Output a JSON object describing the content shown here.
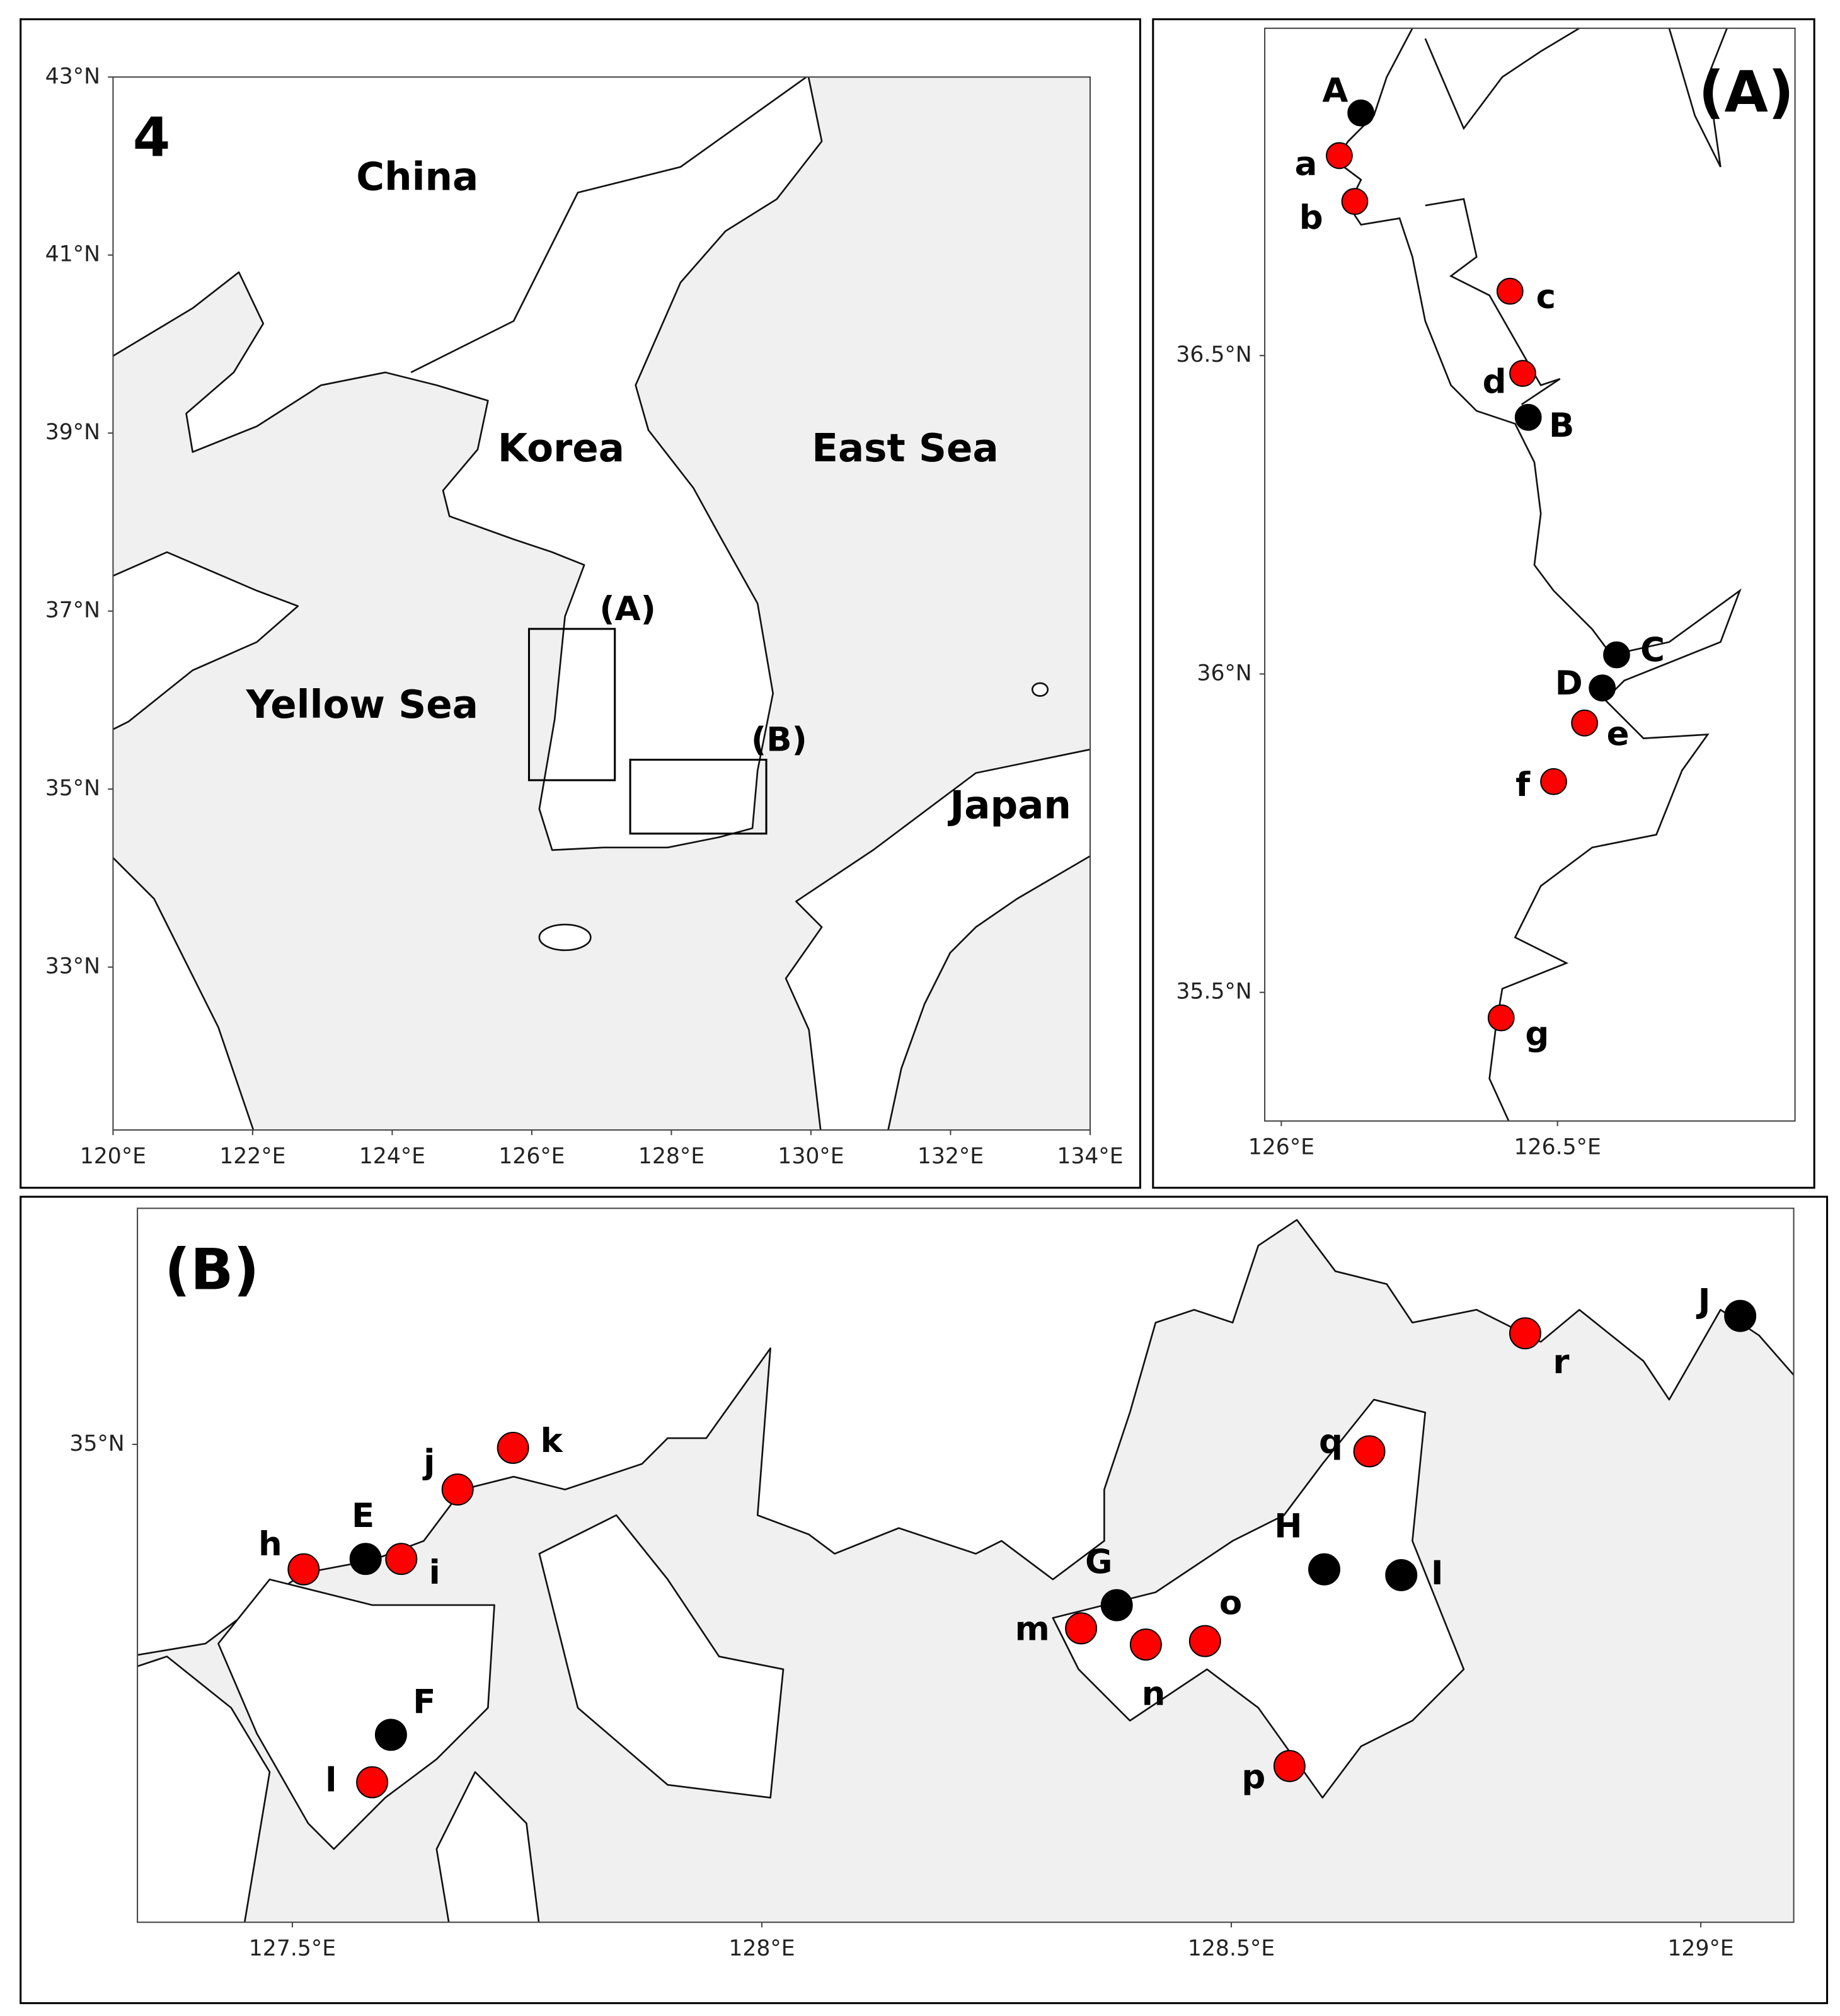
{
  "figure_label": "4",
  "maps": [
    {
      "type": "map",
      "xlim": [
        120,
        134
      ],
      "ylim": [
        31.17,
        43
      ],
      "xticks": [
        {
          "value": 120,
          "label": "120°E"
        },
        {
          "value": 122,
          "label": "122°E"
        },
        {
          "value": 124,
          "label": "124°E"
        },
        {
          "value": 126,
          "label": "126°E"
        },
        {
          "value": 128,
          "label": "128°E"
        },
        {
          "value": 130,
          "label": "130°E"
        },
        {
          "value": 132,
          "label": "132°E"
        },
        {
          "value": 134,
          "label": "134°E"
        }
      ],
      "yticks": [
        {
          "value": 33,
          "label": "33°N"
        },
        {
          "value": 35,
          "label": "35°N"
        },
        {
          "value": 37,
          "label": "37°N"
        },
        {
          "value": 39,
          "label": "39°N"
        },
        {
          "value": 41,
          "label": "41°N"
        },
        {
          "value": 43,
          "label": "43°N"
        }
      ],
      "regions": [
        {
          "name": "China",
          "lon": 124.36,
          "lat": 41.85
        },
        {
          "name": "Korea",
          "lon": 126.42,
          "lat": 38.8
        },
        {
          "name": "East Sea",
          "lon": 131.35,
          "lat": 38.8
        },
        {
          "name": "Yellow Sea",
          "lon": 123.57,
          "lat": 35.92
        },
        {
          "name": "Japan",
          "lon": 132.86,
          "lat": 34.79
        }
      ],
      "boxes": [
        {
          "label": "(A)",
          "lon": [
            125.96,
            127.19
          ],
          "lat": [
            35.1,
            36.8
          ]
        },
        {
          "label": "(B)",
          "lon": [
            127.41,
            129.36
          ],
          "lat": [
            34.5,
            35.33
          ]
        }
      ]
    },
    {
      "type": "map",
      "title": "(A)",
      "xlim": [
        125.97,
        126.93
      ],
      "ylim": [
        35.298,
        37.014
      ],
      "xticks": [
        {
          "value": 126,
          "label": "126°E"
        },
        {
          "value": 126.5,
          "label": "126.5°E"
        }
      ],
      "yticks": [
        {
          "value": 35.5,
          "label": "35.5°N"
        },
        {
          "value": 36,
          "label": "36°N"
        },
        {
          "value": 36.5,
          "label": "36.5°N"
        }
      ],
      "stations": [
        {
          "label": "A",
          "lon": 126.144,
          "lat": 36.881,
          "color": "#000000"
        },
        {
          "label": "a",
          "lon": 126.105,
          "lat": 36.814,
          "color": "#ff0000"
        },
        {
          "label": "b",
          "lon": 126.133,
          "lat": 36.742,
          "color": "#ff0000"
        },
        {
          "label": "c",
          "lon": 126.414,
          "lat": 36.601,
          "color": "#ff0000"
        },
        {
          "label": "d",
          "lon": 126.437,
          "lat": 36.472,
          "color": "#ff0000"
        },
        {
          "label": "B",
          "lon": 126.447,
          "lat": 36.403,
          "color": "#000000"
        },
        {
          "label": "C",
          "lon": 126.607,
          "lat": 36.03,
          "color": "#000000"
        },
        {
          "label": "D",
          "lon": 126.581,
          "lat": 35.978,
          "color": "#000000"
        },
        {
          "label": "e",
          "lon": 126.549,
          "lat": 35.923,
          "color": "#ff0000"
        },
        {
          "label": "f",
          "lon": 126.493,
          "lat": 35.831,
          "color": "#ff0000"
        },
        {
          "label": "g",
          "lon": 126.398,
          "lat": 35.46,
          "color": "#ff0000"
        }
      ]
    },
    {
      "type": "map",
      "title": "(B)",
      "xlim": [
        127.335,
        129.099
      ],
      "ylim": [
        34.587,
        35.204
      ],
      "xticks": [
        {
          "value": 127.5,
          "label": "127.5°E"
        },
        {
          "value": 128,
          "label": "128°E"
        },
        {
          "value": 128.5,
          "label": "128.5°E"
        },
        {
          "value": 129,
          "label": "129°E"
        }
      ],
      "yticks": [
        {
          "value": 35,
          "label": "35°N"
        }
      ],
      "stations": [
        {
          "label": "E",
          "lon": 127.578,
          "lat": 34.901,
          "color": "#000000"
        },
        {
          "label": "h",
          "lon": 127.512,
          "lat": 34.892,
          "color": "#ff0000"
        },
        {
          "label": "i",
          "lon": 127.616,
          "lat": 34.901,
          "color": "#ff0000"
        },
        {
          "label": "j",
          "lon": 127.676,
          "lat": 34.961,
          "color": "#ff0000"
        },
        {
          "label": "k",
          "lon": 127.735,
          "lat": 34.997,
          "color": "#ff0000"
        },
        {
          "label": "F",
          "lon": 127.605,
          "lat": 34.749,
          "color": "#000000"
        },
        {
          "label": "l",
          "lon": 127.585,
          "lat": 34.708,
          "color": "#ff0000"
        },
        {
          "label": "G",
          "lon": 128.378,
          "lat": 34.861,
          "color": "#000000"
        },
        {
          "label": "m",
          "lon": 128.34,
          "lat": 34.841,
          "color": "#ff0000"
        },
        {
          "label": "n",
          "lon": 128.409,
          "lat": 34.827,
          "color": "#ff0000"
        },
        {
          "label": "o",
          "lon": 128.472,
          "lat": 34.83,
          "color": "#ff0000"
        },
        {
          "label": "H",
          "lon": 128.599,
          "lat": 34.892,
          "color": "#000000"
        },
        {
          "label": "I",
          "lon": 128.681,
          "lat": 34.887,
          "color": "#000000"
        },
        {
          "label": "p",
          "lon": 128.562,
          "lat": 34.722,
          "color": "#ff0000"
        },
        {
          "label": "q",
          "lon": 128.647,
          "lat": 34.994,
          "color": "#ff0000"
        },
        {
          "label": "r",
          "lon": 128.813,
          "lat": 35.096,
          "color": "#ff0000"
        },
        {
          "label": "J",
          "lon": 129.042,
          "lat": 35.111,
          "color": "#000000"
        }
      ]
    }
  ]
}
